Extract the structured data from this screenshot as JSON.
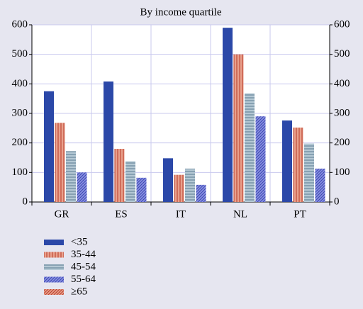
{
  "chart_data": {
    "type": "bar",
    "title": "By income quartile",
    "categories": [
      "GR",
      "ES",
      "IT",
      "NL",
      "PT"
    ],
    "series": [
      {
        "name": "<35",
        "color": "#2b48a8",
        "values": [
          375,
          408,
          148,
          590,
          276
        ]
      },
      {
        "name": "35-44",
        "color": "#e8a08c",
        "values": [
          268,
          180,
          92,
          500,
          252
        ]
      },
      {
        "name": "45-54",
        "color": "#b4c8d4",
        "values": [
          172,
          138,
          113,
          368,
          198
        ]
      },
      {
        "name": "55-64",
        "color": "#8a92e2",
        "values": [
          100,
          82,
          58,
          290,
          113
        ]
      },
      {
        "name": "≥65",
        "color": "#e8a08c",
        "values": [
          null,
          null,
          null,
          null,
          null
        ]
      }
    ],
    "ylim": [
      0,
      600
    ],
    "yticks": [
      0,
      100,
      200,
      300,
      400,
      500,
      600
    ],
    "y2lim": [
      0,
      600
    ],
    "y2ticks": [
      0,
      100,
      200,
      300,
      400,
      500,
      600
    ],
    "grid": true
  }
}
